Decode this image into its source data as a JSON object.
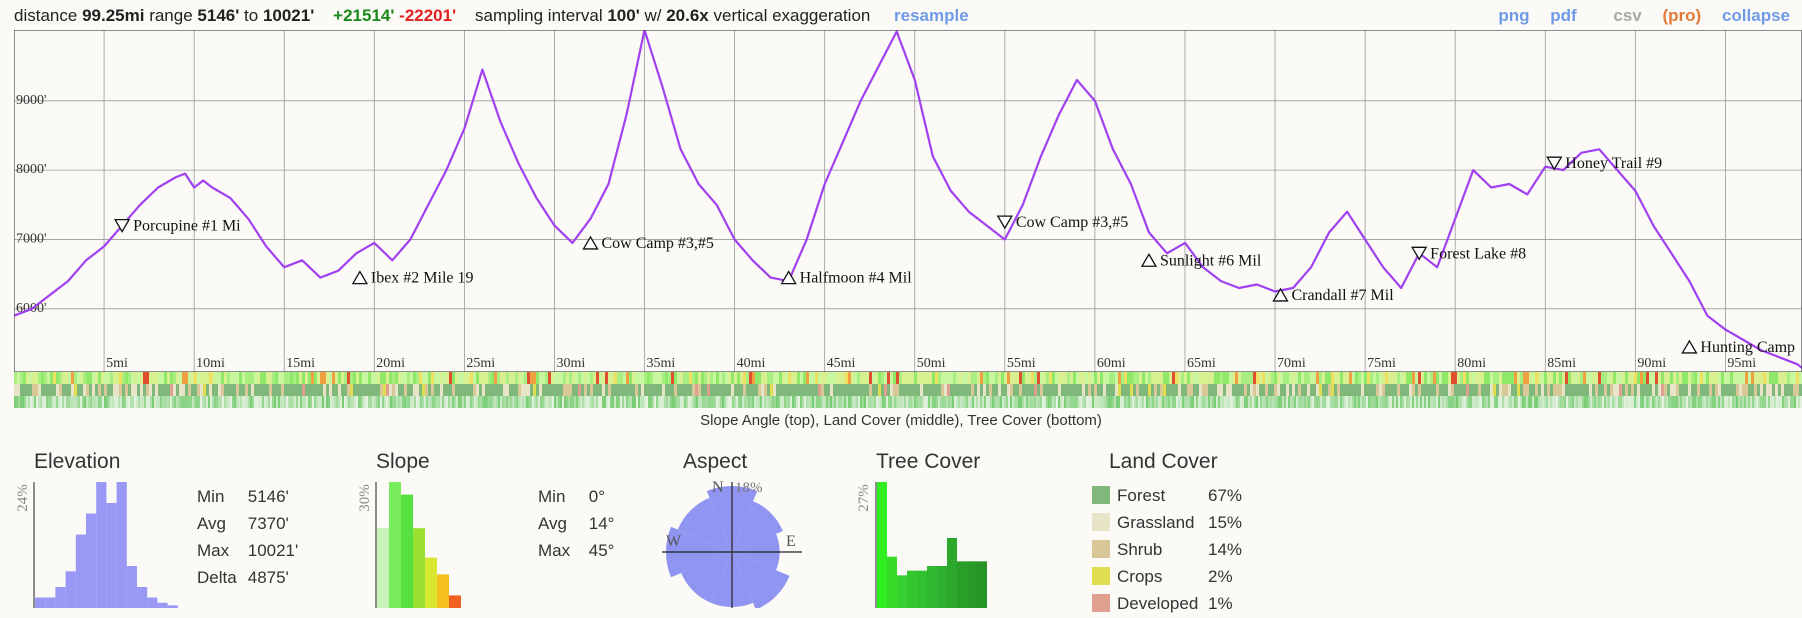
{
  "topbar": {
    "distance_label": "distance",
    "distance_value": "99.25mi",
    "range_label": "range",
    "range_min": "5146'",
    "range_to": "to",
    "range_max": "10021'",
    "gain": "+21514'",
    "loss": "-22201'",
    "sampling_label": "sampling interval",
    "sampling_value": "100'",
    "w_label": "w/",
    "exaggeration_value": "20.6x",
    "exaggeration_label": "vertical exaggeration",
    "resample": "resample",
    "png": "png",
    "pdf": "pdf",
    "csv": "csv",
    "pro": "(pro)",
    "collapse": "collapse"
  },
  "profile": {
    "y_ticks": [
      {
        "value": 9000,
        "label": "9000'"
      },
      {
        "value": 8000,
        "label": "8000'"
      },
      {
        "value": 7000,
        "label": "7000'"
      },
      {
        "value": 6000,
        "label": "6000'"
      }
    ],
    "x_ticks": [
      {
        "value": 5,
        "label": "5mi"
      },
      {
        "value": 10,
        "label": "10mi"
      },
      {
        "value": 15,
        "label": "15mi"
      },
      {
        "value": 20,
        "label": "20mi"
      },
      {
        "value": 25,
        "label": "25mi"
      },
      {
        "value": 30,
        "label": "30mi"
      },
      {
        "value": 35,
        "label": "35mi"
      },
      {
        "value": 40,
        "label": "40mi"
      },
      {
        "value": 45,
        "label": "45mi"
      },
      {
        "value": 50,
        "label": "50mi"
      },
      {
        "value": 55,
        "label": "55mi"
      },
      {
        "value": 60,
        "label": "60mi"
      },
      {
        "value": 65,
        "label": "65mi"
      },
      {
        "value": 70,
        "label": "70mi"
      },
      {
        "value": 75,
        "label": "75mi"
      },
      {
        "value": 80,
        "label": "80mi"
      },
      {
        "value": 85,
        "label": "85mi"
      },
      {
        "value": 90,
        "label": "90mi"
      },
      {
        "value": 95,
        "label": "95mi"
      }
    ],
    "markers": [
      {
        "dir": "down",
        "mi": 6.0,
        "elev": 7200,
        "label": "Porcupine #1 Mi"
      },
      {
        "dir": "up",
        "mi": 19.2,
        "elev": 6450,
        "label": "Ibex #2 Mile 19"
      },
      {
        "dir": "up",
        "mi": 32.0,
        "elev": 6950,
        "label": "Cow Camp #3,#5"
      },
      {
        "dir": "up",
        "mi": 43.0,
        "elev": 6450,
        "label": "Halfmoon #4 Mil"
      },
      {
        "dir": "down",
        "mi": 55.0,
        "elev": 7250,
        "label": "Cow Camp #3,#5"
      },
      {
        "dir": "up",
        "mi": 63.0,
        "elev": 6700,
        "label": "Sunlight #6 Mil"
      },
      {
        "dir": "up",
        "mi": 70.3,
        "elev": 6200,
        "label": "Crandall #7 Mil"
      },
      {
        "dir": "down",
        "mi": 78.0,
        "elev": 6800,
        "label": "Forest Lake #8"
      },
      {
        "dir": "down",
        "mi": 85.5,
        "elev": 8100,
        "label": "Honey Trail #9"
      },
      {
        "dir": "up",
        "mi": 93.0,
        "elev": 5450,
        "label": "Hunting Camp"
      }
    ]
  },
  "chart_data": [
    {
      "type": "line",
      "title": "",
      "xlabel": "",
      "ylabel": "",
      "xlim": [
        0,
        99.25
      ],
      "ylim": [
        5146,
        10021
      ],
      "x": [
        0,
        1,
        2,
        3,
        4,
        5,
        6,
        7,
        8,
        9,
        9.5,
        10,
        10.5,
        11,
        12,
        13,
        14,
        15,
        16,
        17,
        18,
        19,
        20,
        21,
        22,
        23,
        24,
        25,
        26,
        27,
        28,
        29,
        30,
        31,
        32,
        33,
        34,
        35,
        36,
        37,
        38,
        39,
        40,
        41,
        42,
        43,
        44,
        45,
        46,
        47,
        48,
        49,
        50,
        51,
        52,
        53,
        54,
        55,
        56,
        57,
        58,
        59,
        60,
        61,
        62,
        63,
        64,
        65,
        66,
        67,
        68,
        69,
        70,
        71,
        72,
        73,
        74,
        75,
        76,
        77,
        78,
        79,
        80,
        81,
        82,
        83,
        84,
        85,
        86,
        87,
        88,
        89,
        90,
        91,
        92,
        93,
        94,
        95,
        96,
        97,
        98,
        99,
        99.25
      ],
      "y": [
        5900,
        6000,
        6200,
        6400,
        6700,
        6900,
        7200,
        7500,
        7750,
        7900,
        7950,
        7750,
        7850,
        7750,
        7600,
        7300,
        6900,
        6600,
        6700,
        6450,
        6550,
        6800,
        6950,
        6700,
        7000,
        7500,
        8000,
        8600,
        9450,
        8700,
        8100,
        7600,
        7200,
        6950,
        7300,
        7800,
        8800,
        10021,
        9200,
        8300,
        7800,
        7500,
        7000,
        6700,
        6450,
        6400,
        7000,
        7800,
        8400,
        9000,
        9500,
        10000,
        9300,
        8200,
        7700,
        7400,
        7200,
        7000,
        7500,
        8200,
        8800,
        9300,
        9000,
        8300,
        7800,
        7100,
        6800,
        6950,
        6600,
        6400,
        6300,
        6350,
        6250,
        6300,
        6600,
        7100,
        7400,
        7000,
        6600,
        6300,
        6800,
        6600,
        7300,
        8000,
        7750,
        7800,
        7650,
        8050,
        8000,
        8250,
        8300,
        8000,
        7700,
        7200,
        6800,
        6400,
        5900,
        5700,
        5550,
        5400,
        5300,
        5200,
        5146
      ]
    },
    {
      "type": "bar",
      "title": "Elevation",
      "ylabel": "24%",
      "values": [
        2,
        2,
        4,
        7,
        14,
        18,
        24,
        20,
        24,
        8,
        4,
        2,
        1,
        0.5
      ]
    },
    {
      "type": "bar",
      "title": "Slope",
      "ylabel": "30%",
      "values": [
        19,
        30,
        27,
        19,
        12,
        8,
        3
      ]
    },
    {
      "type": "bar",
      "title": "Tree Cover",
      "ylabel": "27%",
      "values": [
        27,
        11,
        7,
        8,
        8,
        9,
        9,
        15,
        10,
        10,
        10
      ]
    },
    {
      "type": "pie",
      "title": "Aspect",
      "categories": [
        "N",
        "NE",
        "E",
        "SE",
        "S",
        "SW",
        "W",
        "NW"
      ],
      "values": [
        18,
        15,
        13,
        17,
        15,
        15,
        18,
        16
      ]
    }
  ],
  "strips": {
    "caption": "Slope Angle (top), Land Cover (middle), Tree Cover (bottom)"
  },
  "elevation": {
    "title": "Elevation",
    "ylabel": "24%",
    "stats": [
      {
        "k": "Min",
        "v": "5146'"
      },
      {
        "k": "Avg",
        "v": "7370'"
      },
      {
        "k": "Max",
        "v": "10021'"
      },
      {
        "k": "Delta",
        "v": "4875'"
      }
    ]
  },
  "slope": {
    "title": "Slope",
    "ylabel": "30%",
    "stats": [
      {
        "k": "Min",
        "v": "0°"
      },
      {
        "k": "Avg",
        "v": "14°"
      },
      {
        "k": "Max",
        "v": "45°"
      }
    ]
  },
  "aspect": {
    "title": "Aspect",
    "n_label": "N",
    "pct_label": "18%",
    "e_label": "E",
    "w_label": "W"
  },
  "tree_cover": {
    "title": "Tree Cover",
    "ylabel": "27%"
  },
  "land_cover": {
    "title": "Land Cover",
    "items": [
      {
        "name": "Forest",
        "pct": "67%",
        "color": "#7fb87a"
      },
      {
        "name": "Grassland",
        "pct": "15%",
        "color": "#e8e4c8"
      },
      {
        "name": "Shrub",
        "pct": "14%",
        "color": "#d8c898"
      },
      {
        "name": "Crops",
        "pct": "2%",
        "color": "#dede50"
      },
      {
        "name": "Developed",
        "pct": "1%",
        "color": "#e0a090"
      }
    ]
  },
  "colors": {
    "profile_line": "#a040f0",
    "histogram": "#9999f5",
    "aspect": "#8f95f0",
    "tree_cover": "#33dd33"
  }
}
